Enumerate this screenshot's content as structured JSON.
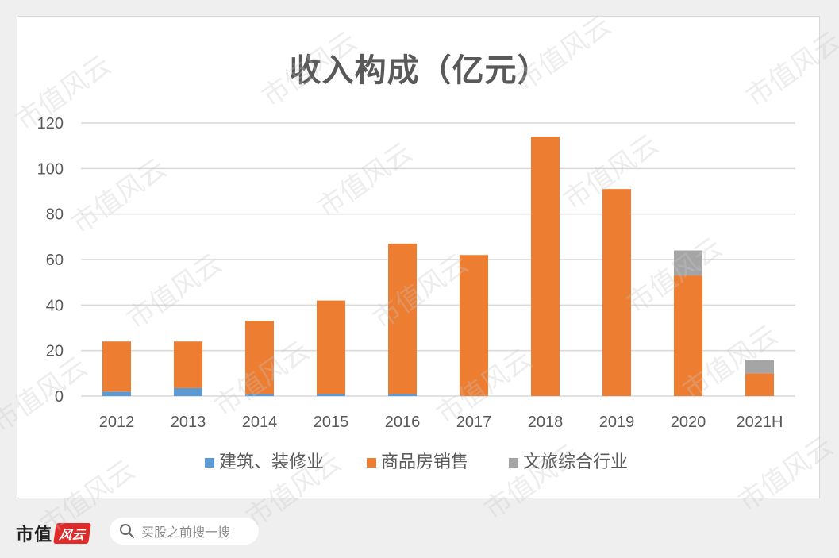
{
  "chart_data": {
    "type": "bar",
    "stacked": true,
    "title": "收入构成（亿元）",
    "categories": [
      "2012",
      "2013",
      "2014",
      "2015",
      "2016",
      "2017",
      "2018",
      "2019",
      "2020",
      "2021H"
    ],
    "series": [
      {
        "name": "建筑、装修业",
        "color": "#5b9bd5",
        "values": [
          2,
          3.5,
          1,
          1,
          1,
          0,
          0,
          0,
          0,
          0
        ]
      },
      {
        "name": "商品房销售",
        "color": "#ed7d31",
        "values": [
          22,
          20.5,
          32,
          41,
          66,
          62,
          114,
          91,
          53,
          10
        ]
      },
      {
        "name": "文旅综合行业",
        "color": "#a5a5a5",
        "values": [
          0,
          0,
          0,
          0,
          0,
          0,
          0,
          0,
          11,
          6
        ]
      }
    ],
    "ylim": [
      0,
      120
    ],
    "yticks": [
      "0",
      "20",
      "40",
      "60",
      "80",
      "100",
      "120"
    ],
    "grid": true,
    "legend_position": "bottom"
  },
  "footer": {
    "brand": "市值",
    "brand_seal": "风云",
    "search_placeholder": "买股之前搜一搜"
  },
  "watermark_text": "市值风云"
}
